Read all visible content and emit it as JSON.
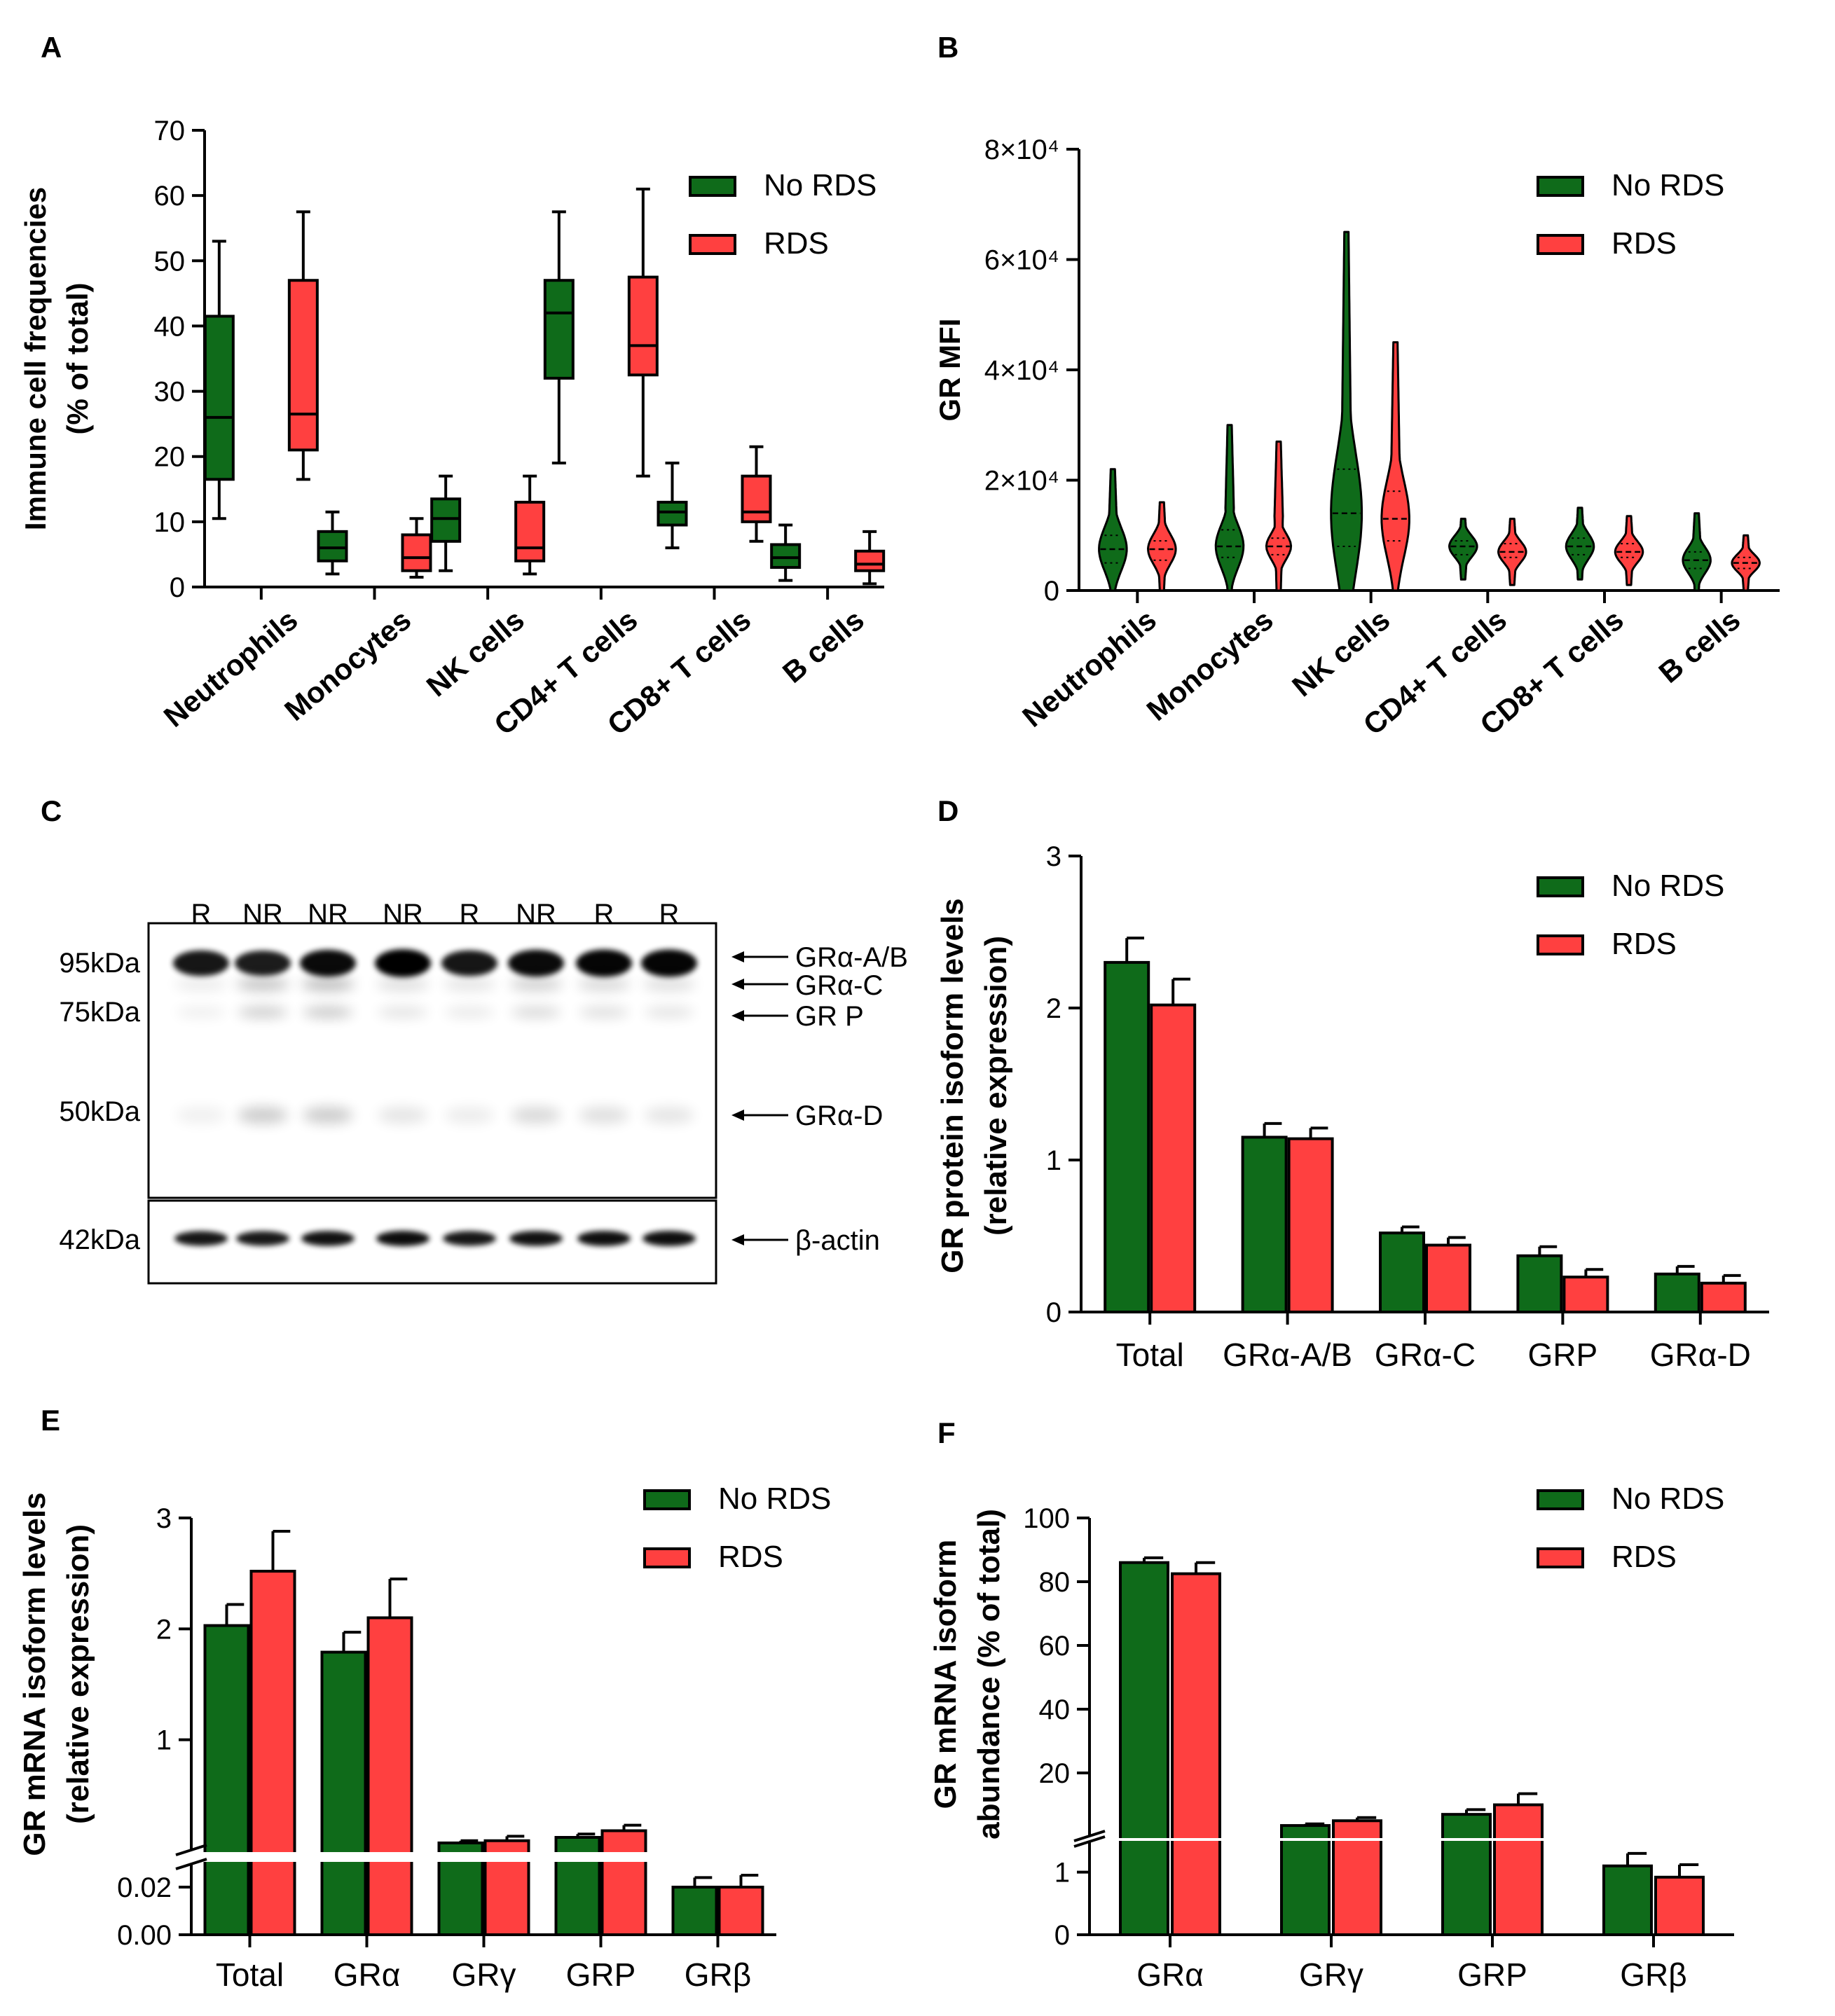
{
  "colors": {
    "green": "#0f6b1a",
    "red": "#ff4040",
    "axis": "#000000"
  },
  "legend": {
    "no_rds": "No RDS",
    "rds": "RDS"
  },
  "chart_data": [
    {
      "id": "A",
      "panel_label": "A",
      "type": "box",
      "ylabel": "Immune cell frequencies",
      "ylabel2": "(% of total)",
      "ylim": [
        0,
        70
      ],
      "yticks": [
        {
          "v": 0,
          "label": "0"
        },
        {
          "v": 10,
          "label": "10"
        },
        {
          "v": 20,
          "label": "20"
        },
        {
          "v": 30,
          "label": "30"
        },
        {
          "v": 40,
          "label": "40"
        },
        {
          "v": 50,
          "label": "50"
        },
        {
          "v": 60,
          "label": "60"
        },
        {
          "v": 70,
          "label": "70"
        }
      ],
      "categories": [
        "Neutrophils",
        "Monocytes",
        "NK cells",
        "CD4+ T cells",
        "CD8+ T cells",
        "B cells"
      ],
      "series": [
        {
          "name": "No RDS",
          "color": "green",
          "boxes": [
            {
              "min": 10.5,
              "q1": 16.5,
              "median": 26,
              "q3": 41.5,
              "max": 53
            },
            {
              "min": 2,
              "q1": 4,
              "median": 6,
              "q3": 8.5,
              "max": 11.5
            },
            {
              "min": 2.5,
              "q1": 7,
              "median": 10.5,
              "q3": 13.5,
              "max": 17
            },
            {
              "min": 19,
              "q1": 32,
              "median": 42,
              "q3": 47,
              "max": 57.5
            },
            {
              "min": 6,
              "q1": 9.5,
              "median": 11.5,
              "q3": 13,
              "max": 19
            },
            {
              "min": 1,
              "q1": 3,
              "median": 4.5,
              "q3": 6.5,
              "max": 9.5
            }
          ]
        },
        {
          "name": "RDS",
          "color": "red",
          "boxes": [
            {
              "min": 16.5,
              "q1": 21,
              "median": 26.5,
              "q3": 47,
              "max": 57.5
            },
            {
              "min": 1.5,
              "q1": 2.5,
              "median": 4.5,
              "q3": 8,
              "max": 10.5
            },
            {
              "min": 2,
              "q1": 4,
              "median": 6,
              "q3": 13,
              "max": 17
            },
            {
              "min": 17,
              "q1": 32.5,
              "median": 37,
              "q3": 47.5,
              "max": 61
            },
            {
              "min": 7,
              "q1": 10,
              "median": 11.5,
              "q3": 17,
              "max": 21.5
            },
            {
              "min": 0.5,
              "q1": 2.5,
              "median": 3.5,
              "q3": 5.5,
              "max": 8.5
            }
          ]
        }
      ]
    },
    {
      "id": "B",
      "panel_label": "B",
      "type": "violin",
      "ylabel": "GR MFI",
      "ylim": [
        0,
        80000
      ],
      "yticks": [
        {
          "v": 0,
          "label": "0"
        },
        {
          "v": 20000,
          "label": "2×10⁴"
        },
        {
          "v": 40000,
          "label": "4×10⁴"
        },
        {
          "v": 60000,
          "label": "6×10⁴"
        },
        {
          "v": 80000,
          "label": "8×10⁴"
        }
      ],
      "categories": [
        "Neutrophils",
        "Monocytes",
        "NK cells",
        "CD4+ T cells",
        "CD8+ T cells",
        "B cells"
      ],
      "series": [
        {
          "name": "No RDS",
          "color": "green",
          "violins": [
            {
              "min": 0,
              "max": 22000,
              "median": 7500,
              "q1": 5000,
              "q3": 10000,
              "width": 0.9
            },
            {
              "min": 0,
              "max": 30000,
              "median": 8000,
              "q1": 6000,
              "q3": 11000,
              "width": 0.9
            },
            {
              "min": 0,
              "max": 65000,
              "median": 14000,
              "q1": 8000,
              "q3": 22000,
              "width": 1.0
            },
            {
              "min": 2000,
              "max": 13000,
              "median": 8000,
              "q1": 6500,
              "q3": 9000,
              "width": 0.9
            },
            {
              "min": 2000,
              "max": 15000,
              "median": 8000,
              "q1": 6500,
              "q3": 9500,
              "width": 0.9
            },
            {
              "min": 0,
              "max": 14000,
              "median": 5500,
              "q1": 4000,
              "q3": 7000,
              "width": 0.9
            }
          ]
        },
        {
          "name": "RDS",
          "color": "red",
          "violins": [
            {
              "min": 0,
              "max": 16000,
              "median": 7500,
              "q1": 5500,
              "q3": 9000,
              "width": 0.9
            },
            {
              "min": 0,
              "max": 27000,
              "median": 8000,
              "q1": 6500,
              "q3": 9500,
              "width": 0.8
            },
            {
              "min": 0,
              "max": 45000,
              "median": 13000,
              "q1": 9000,
              "q3": 18000,
              "width": 0.9
            },
            {
              "min": 1000,
              "max": 13000,
              "median": 7000,
              "q1": 6000,
              "q3": 8500,
              "width": 0.9
            },
            {
              "min": 1000,
              "max": 13500,
              "median": 7000,
              "q1": 6000,
              "q3": 8500,
              "width": 0.9
            },
            {
              "min": 0,
              "max": 10000,
              "median": 5000,
              "q1": 4000,
              "q3": 6000,
              "width": 0.9
            }
          ]
        }
      ]
    },
    {
      "id": "D",
      "panel_label": "D",
      "type": "bar",
      "ylabel": "GR protein isoform levels",
      "ylabel2": "(relative expression)",
      "ylim": [
        0,
        3
      ],
      "yticks": [
        {
          "v": 0,
          "label": "0"
        },
        {
          "v": 1,
          "label": "1"
        },
        {
          "v": 2,
          "label": "2"
        },
        {
          "v": 3,
          "label": "3"
        }
      ],
      "categories": [
        "Total",
        "GRα-A/B",
        "GRα-C",
        "GRP",
        "GRα-D"
      ],
      "series": [
        {
          "name": "No RDS",
          "color": "green",
          "values": [
            2.3,
            1.15,
            0.52,
            0.37,
            0.25
          ],
          "errors": [
            0.16,
            0.09,
            0.04,
            0.06,
            0.05
          ]
        },
        {
          "name": "RDS",
          "color": "red",
          "values": [
            2.02,
            1.14,
            0.44,
            0.23,
            0.19
          ],
          "errors": [
            0.17,
            0.07,
            0.05,
            0.05,
            0.05
          ]
        }
      ]
    },
    {
      "id": "E",
      "panel_label": "E",
      "type": "bar",
      "ylabel": "GR mRNA isoform levels",
      "ylabel2": "(relative expression)",
      "axis_break": true,
      "ylim_lower": [
        0,
        0.03
      ],
      "ylim_upper": [
        0,
        3
      ],
      "yticks": [
        {
          "v": 0,
          "label": "0.00",
          "seg": "lower"
        },
        {
          "v": 0.02,
          "label": "0.02",
          "seg": "lower"
        },
        {
          "v": 1,
          "label": "1",
          "seg": "upper"
        },
        {
          "v": 2,
          "label": "2",
          "seg": "upper"
        },
        {
          "v": 3,
          "label": "3",
          "seg": "upper"
        }
      ],
      "categories": [
        "Total",
        "GRα",
        "GRγ",
        "GRP",
        "GRβ"
      ],
      "series": [
        {
          "name": "No RDS",
          "color": "green",
          "values": [
            2.03,
            1.79,
            0.07,
            0.12,
            0.02
          ],
          "errors": [
            0.19,
            0.18,
            0.02,
            0.03,
            0.004
          ],
          "seg": [
            "upper",
            "upper",
            "upper",
            "upper",
            "lower"
          ]
        },
        {
          "name": "RDS",
          "color": "red",
          "values": [
            2.52,
            2.1,
            0.09,
            0.18,
            0.02
          ],
          "errors": [
            0.36,
            0.35,
            0.04,
            0.05,
            0.005
          ],
          "seg": [
            "upper",
            "upper",
            "upper",
            "upper",
            "lower"
          ]
        }
      ]
    },
    {
      "id": "F",
      "panel_label": "F",
      "type": "bar",
      "ylabel": "GR mRNA isoform",
      "ylabel2": "abundance (% of total)",
      "axis_break": true,
      "ylim_lower": [
        0,
        1.5
      ],
      "ylim_upper": [
        0,
        100
      ],
      "yticks": [
        {
          "v": 0,
          "label": "0",
          "seg": "lower"
        },
        {
          "v": 1,
          "label": "1",
          "seg": "lower"
        },
        {
          "v": 20,
          "label": "20",
          "seg": "upper"
        },
        {
          "v": 40,
          "label": "40",
          "seg": "upper"
        },
        {
          "v": 60,
          "label": "60",
          "seg": "upper"
        },
        {
          "v": 80,
          "label": "80",
          "seg": "upper"
        },
        {
          "v": 100,
          "label": "100",
          "seg": "upper"
        }
      ],
      "categories": [
        "GRα",
        "GRγ",
        "GRP",
        "GRβ"
      ],
      "series": [
        {
          "name": "No RDS",
          "color": "green",
          "values": [
            86,
            3.5,
            7,
            1.1
          ],
          "errors": [
            1.5,
            0.5,
            1.5,
            0.2
          ],
          "seg": [
            "upper",
            "upper",
            "upper",
            "lower"
          ]
        },
        {
          "name": "RDS",
          "color": "red",
          "values": [
            82.5,
            5,
            10,
            0.92
          ],
          "errors": [
            3.5,
            1,
            3.5,
            0.2
          ],
          "seg": [
            "upper",
            "upper",
            "upper",
            "lower"
          ]
        }
      ]
    }
  ],
  "blot": {
    "panel_label": "C",
    "lanes": [
      "R",
      "NR",
      "NR",
      "NR",
      "R",
      "NR",
      "R",
      "R"
    ],
    "mw_markers": [
      "95kDa",
      "75kDa",
      "50kDa"
    ],
    "actin_marker": "42kDa",
    "band_labels": [
      "GRα-A/B",
      "GRα-C",
      "GR P",
      "GRα-D"
    ],
    "actin_label": "β-actin"
  }
}
